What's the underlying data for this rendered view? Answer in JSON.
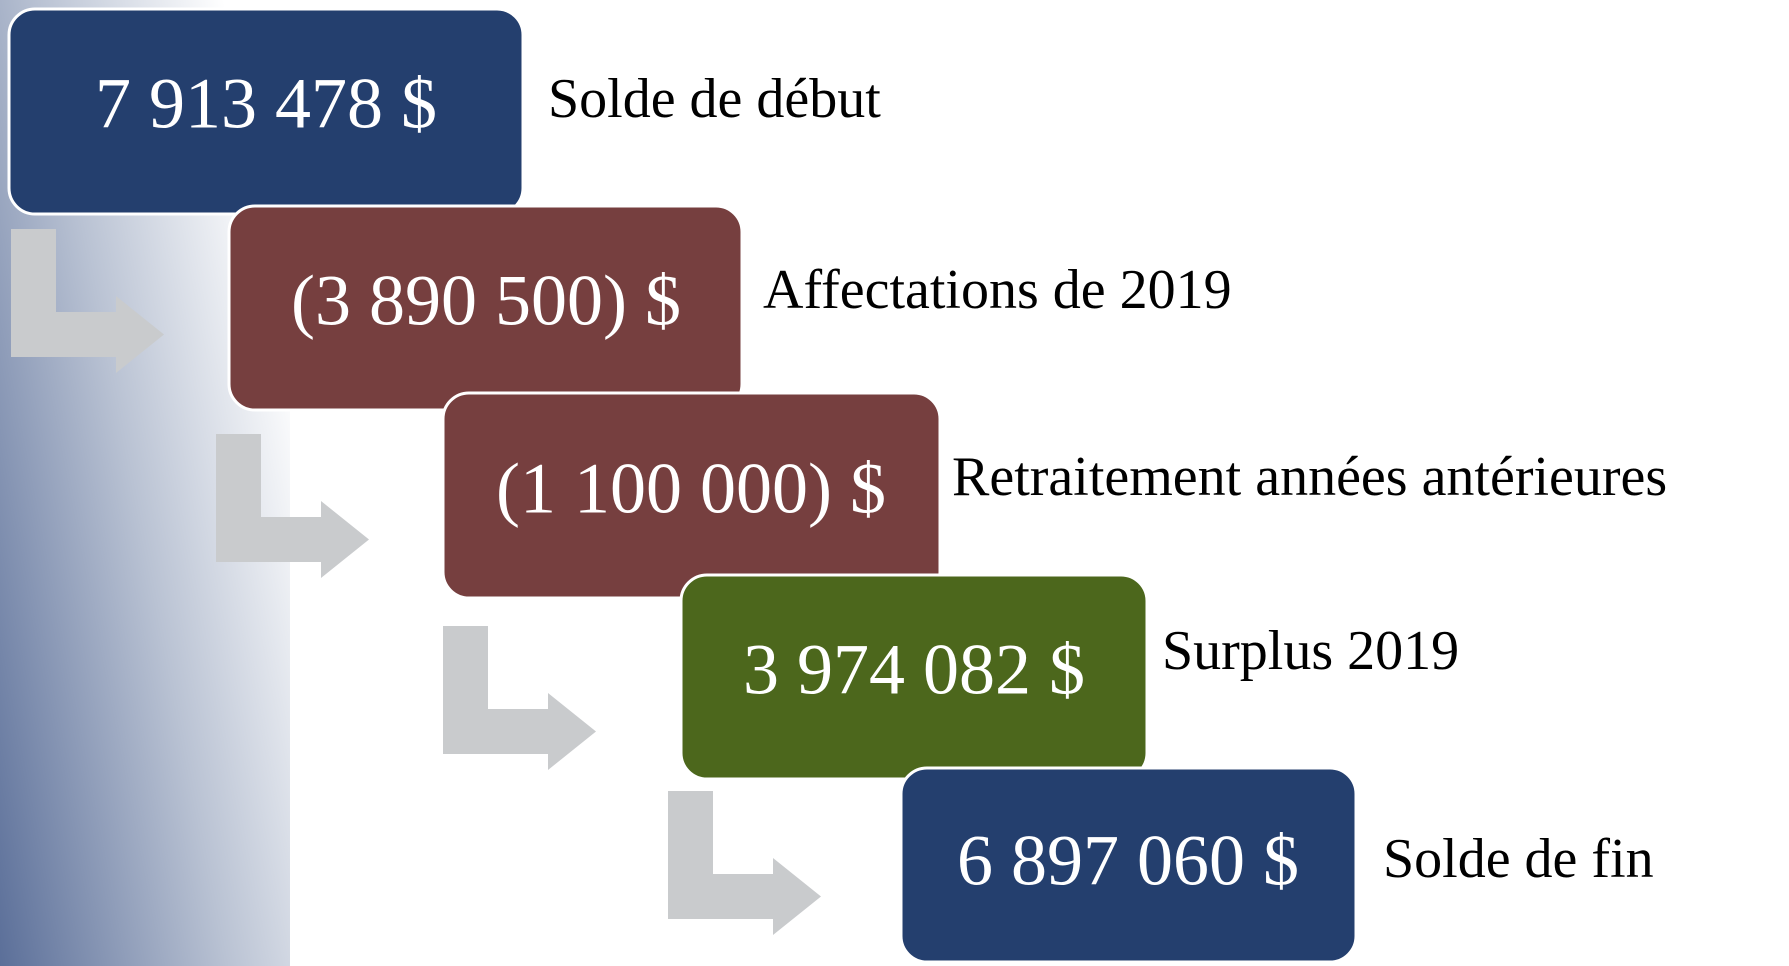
{
  "steps": [
    {
      "amount": "7 913 478 $",
      "label": "Solde de début"
    },
    {
      "amount": "(3 890 500) $",
      "label": "Affectations de 2019"
    },
    {
      "amount": "(1 100 000) $",
      "label": "Retraitement années antérieures"
    },
    {
      "amount": "3 974 082 $",
      "label": "Surplus 2019"
    },
    {
      "amount": "6 897 060 $",
      "label": "Solde de fin"
    }
  ]
}
